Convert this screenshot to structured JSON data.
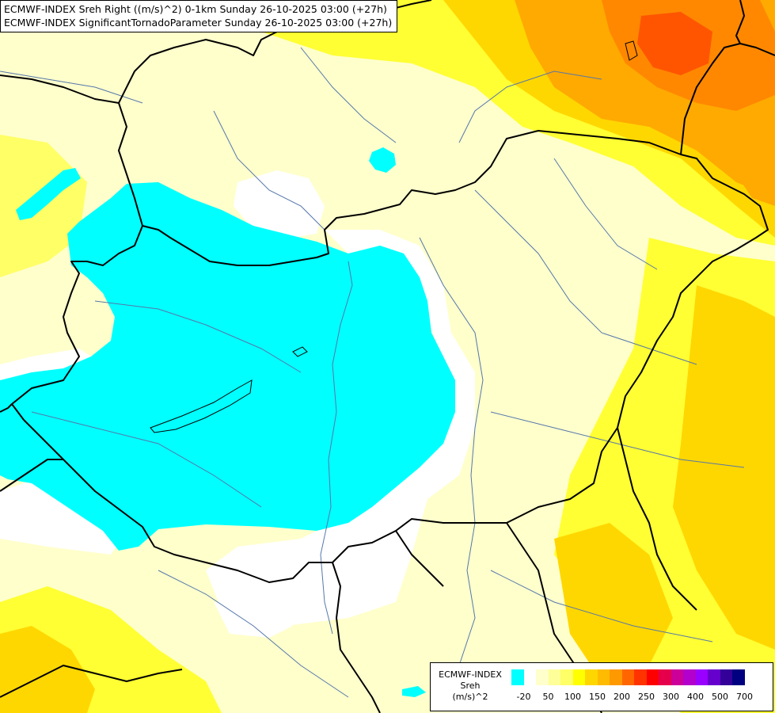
{
  "header": {
    "line1": "ECMWF-INDEX Sreh Right ((m/s)^2) 0-1km Sunday 26-10-2025 03:00 (+27h)",
    "line2": "ECMWF-INDEX SignificantTornadoParameter Sunday 26-10-2025 03:00 (+27h)"
  },
  "legend": {
    "model": "ECMWF-INDEX",
    "variable": "Sreh",
    "unit": "(m/s)^2",
    "colors": [
      "#00ffff",
      "#ffffff",
      "#ffffcc",
      "#ffff99",
      "#ffff66",
      "#ffff00",
      "#ffd700",
      "#ffbb00",
      "#ff9900",
      "#ff6600",
      "#ff3300",
      "#ff0000",
      "#e6004c",
      "#cc0099",
      "#b300cc",
      "#9900ff",
      "#6600cc",
      "#330099",
      "#000080"
    ],
    "ticks": [
      "-20",
      "50",
      "100",
      "150",
      "200",
      "250",
      "300",
      "400",
      "500",
      "700"
    ]
  },
  "palette": {
    "cyan": "#00ffff",
    "white": "#ffffff",
    "pale": "#ffffcc",
    "light_yellow": "#ffff99",
    "yellow": "#ffff33",
    "gold": "#ffd700",
    "orange": "#ffaa00",
    "dark_orange": "#ff8800",
    "red_orange": "#ff5500",
    "border": "#000000",
    "river": "#5577aa"
  }
}
